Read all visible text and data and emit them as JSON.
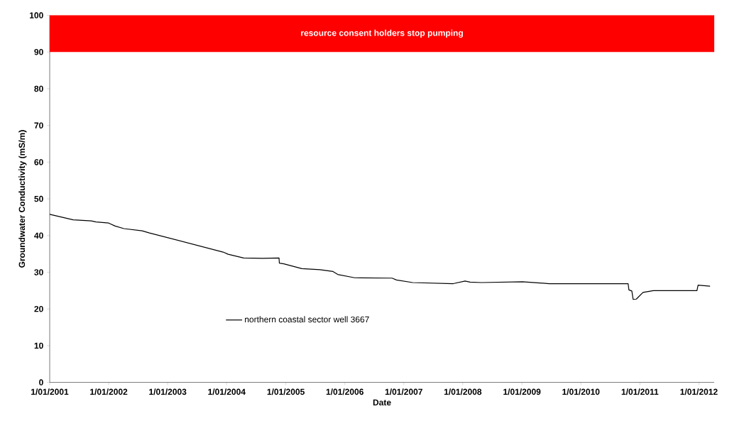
{
  "chart_data": {
    "type": "line",
    "xlabel": "Date",
    "ylabel": "Groundwater Conductivity (mS/m)",
    "xlim": [
      "2001-01-01",
      "2012-04-05"
    ],
    "ylim": [
      0,
      100
    ],
    "xticks": [
      {
        "value": "2001-01-01",
        "label": "1/01/2001"
      },
      {
        "value": "2002-01-01",
        "label": "1/01/2002"
      },
      {
        "value": "2003-01-01",
        "label": "1/01/2003"
      },
      {
        "value": "2004-01-01",
        "label": "1/01/2004"
      },
      {
        "value": "2005-01-01",
        "label": "1/01/2005"
      },
      {
        "value": "2006-01-01",
        "label": "1/01/2006"
      },
      {
        "value": "2007-01-01",
        "label": "1/01/2007"
      },
      {
        "value": "2008-01-01",
        "label": "1/01/2008"
      },
      {
        "value": "2009-01-01",
        "label": "1/01/2009"
      },
      {
        "value": "2010-01-01",
        "label": "1/01/2010"
      },
      {
        "value": "2011-01-01",
        "label": "1/01/2011"
      },
      {
        "value": "2012-01-01",
        "label": "1/01/2012"
      }
    ],
    "yticks": [
      0,
      10,
      20,
      30,
      40,
      50,
      60,
      70,
      80,
      90,
      100
    ],
    "grid": false,
    "legend": "bottom left",
    "marker": "none",
    "line_style": "solid",
    "bands": [
      {
        "axis": "y",
        "from": 90,
        "to": 100,
        "label": "resource consent holders stop pumping",
        "color": "#ff0000"
      }
    ],
    "series": [
      {
        "name": "northern coastal sector well 3667",
        "color": "#000000",
        "x": [
          "2001-01-01",
          "2001-05-26",
          "2001-09-15",
          "2001-10-15",
          "2002-01-01",
          "2002-02-10",
          "2002-04-05",
          "2002-07-27",
          "2002-09-10",
          "2003-12-10",
          "2004-01-10",
          "2004-04-15",
          "2004-08-10",
          "2004-11-20",
          "2004-11-22",
          "2004-12-20",
          "2005-04-10",
          "2005-08-01",
          "2005-10-20",
          "2005-11-18",
          "2006-03-03",
          "2006-10-20",
          "2006-11-17",
          "2007-02-25",
          "2007-11-03",
          "2008-01-15",
          "2008-02-15",
          "2008-04-25",
          "2009-01-05",
          "2009-06-20",
          "2010-10-20",
          "2010-10-25",
          "2010-11-12",
          "2010-11-20",
          "2010-12-10",
          "2011-01-20",
          "2011-03-25",
          "2011-12-20",
          "2011-12-27",
          "2012-03-10"
        ],
        "values": [
          45.8,
          44.3,
          44.0,
          43.7,
          43.4,
          42.6,
          41.9,
          41.3,
          40.7,
          35.5,
          34.9,
          33.9,
          33.8,
          33.9,
          32.5,
          32.3,
          31.0,
          30.7,
          30.2,
          29.4,
          28.5,
          28.4,
          27.9,
          27.2,
          26.9,
          27.6,
          27.3,
          27.2,
          27.4,
          26.9,
          26.9,
          25.2,
          24.9,
          22.6,
          22.7,
          24.5,
          25.0,
          25.0,
          26.5,
          26.2
        ]
      }
    ]
  }
}
